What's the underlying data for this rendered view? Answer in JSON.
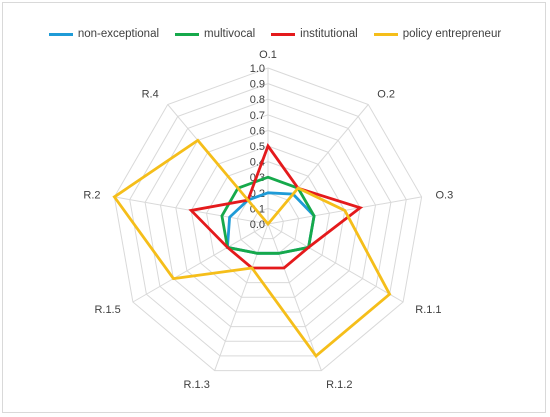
{
  "chart_data": {
    "type": "radar",
    "title": "",
    "categories": [
      "O.1",
      "O.2",
      "O.3",
      "R.1.1",
      "R.1.2",
      "R.1.3",
      "R.1.5",
      "R.2",
      "R.4"
    ],
    "ticks": [
      "0.0",
      "0.1",
      "0.2",
      "0.3",
      "0.4",
      "0.5",
      "0.6",
      "0.7",
      "0.8",
      "0.9",
      "1.0"
    ],
    "rlim": [
      0,
      1
    ],
    "grid": true,
    "legend_position": "top",
    "series": [
      {
        "name": "non-exceptional",
        "color": "#1f9bd7",
        "values": [
          0.2,
          0.25,
          0.3,
          0.3,
          0.2,
          0.2,
          0.3,
          0.25,
          0.2
        ]
      },
      {
        "name": "multivocal",
        "color": "#16a94b",
        "values": [
          0.3,
          0.3,
          0.3,
          0.3,
          0.2,
          0.2,
          0.3,
          0.3,
          0.3
        ]
      },
      {
        "name": "institutional",
        "color": "#e41a1c",
        "values": [
          0.5,
          0.3,
          0.6,
          0.3,
          0.3,
          0.3,
          0.3,
          0.5,
          0.2
        ]
      },
      {
        "name": "policy entrepreneur",
        "color": "#f5be1a",
        "values": [
          0.0,
          0.3,
          0.5,
          0.9,
          0.9,
          0.3,
          0.7,
          1.0,
          0.7
        ]
      }
    ]
  }
}
